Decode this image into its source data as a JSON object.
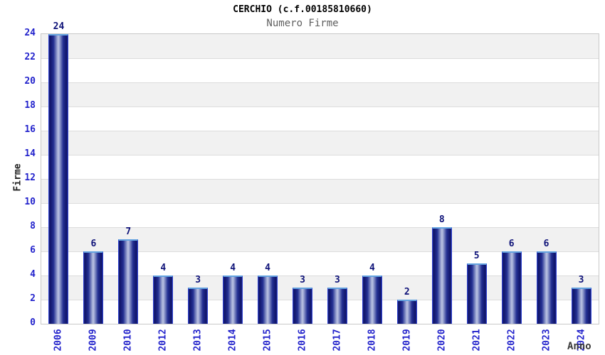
{
  "chart_data": {
    "type": "bar",
    "title": "CERCHIO (c.f.00185810660)",
    "subtitle": "Numero Firme",
    "xlabel": "Anno",
    "ylabel": "Firme",
    "categories": [
      "2006",
      "2009",
      "2010",
      "2012",
      "2013",
      "2014",
      "2015",
      "2016",
      "2017",
      "2018",
      "2019",
      "2020",
      "2021",
      "2022",
      "2023",
      "2024"
    ],
    "values": [
      24,
      6,
      7,
      4,
      3,
      4,
      4,
      3,
      3,
      4,
      2,
      8,
      5,
      6,
      6,
      3
    ],
    "ylim": [
      0,
      24
    ],
    "ytick_step": 2,
    "yticks": [
      0,
      2,
      4,
      6,
      8,
      10,
      12,
      14,
      16,
      18,
      20,
      22,
      24
    ],
    "grid": true,
    "legend": "none",
    "value_labels": true,
    "colors": {
      "tick_label": "#2323cc",
      "value_label": "#0e1278",
      "title": "#000000",
      "subtitle": "#5f5f5f",
      "axis_title": "#2e2e2e",
      "band_fill": "#f1f1f1",
      "band_alt_fill": "#ffffff",
      "gridline": "#dcdcdc",
      "plot_border": "#c9c9c9",
      "bar_edge": "#2e41d0",
      "bar_dark": "#10156a",
      "bar_light": "#bcc4e4",
      "bar_cap": "#63a3e0"
    }
  }
}
